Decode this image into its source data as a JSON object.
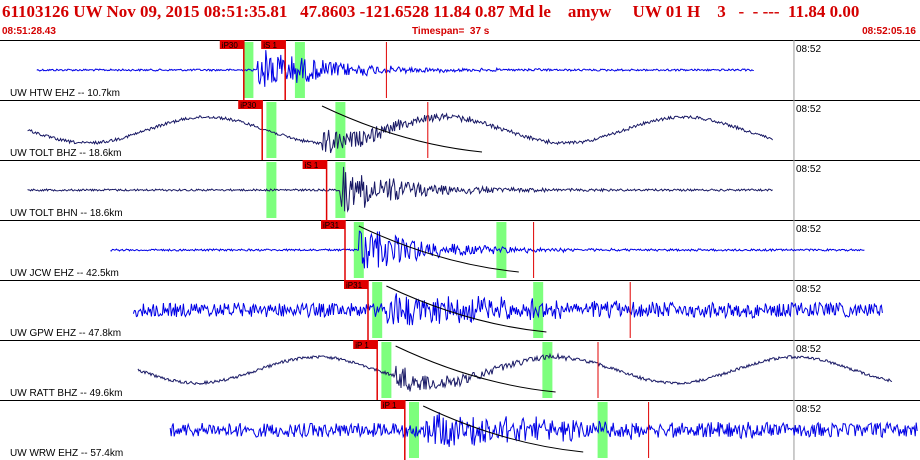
{
  "header": {
    "title": "61103126 UW Nov 09, 2015 08:51:35.81   47.8603 -121.6528 11.84 0.87 Md le    amyw     UW 01 H    3   -  - ---  11.84 0.00",
    "start_time": "08:51:28.43",
    "timespan": "Timespan=  37 s",
    "end_time": "08:52:05.16"
  },
  "colors": {
    "text": "#d40000",
    "trace_blue": "#0000e6",
    "trace_navy": "#1a1a66",
    "pick": "#e00000",
    "window": "#66ff66",
    "grid": "#000000"
  },
  "panels": [
    {
      "label": "UW HTW EHZ -- 10.7km",
      "time": "08:52",
      "color": "#0000e6",
      "kind": "quake",
      "trace": [
        0.04,
        0.82
      ],
      "onset": 0.28,
      "picks": [
        {
          "label": "iP30",
          "pos": 0.265
        },
        {
          "label": "iS 1",
          "pos": 0.31
        }
      ],
      "windows": [
        0.27,
        0.326
      ],
      "curve": false,
      "tick": 0.42
    },
    {
      "label": "UW TOLT BHZ -- 18.6km",
      "time": "08:52",
      "color": "#1a1a66",
      "kind": "wave",
      "trace": [
        0.03,
        0.84
      ],
      "onset": 0.35,
      "picks": [
        {
          "label": "iP30",
          "pos": 0.285
        }
      ],
      "windows": [
        0.295,
        0.37
      ],
      "curve": true,
      "tick": 0.465
    },
    {
      "label": "UW TOLT BHN -- 18.6km",
      "time": "08:52",
      "color": "#1a1a66",
      "kind": "quake",
      "trace": [
        0.03,
        0.84
      ],
      "onset": 0.37,
      "picks": [
        {
          "label": "iS 1",
          "pos": 0.355
        }
      ],
      "windows": [
        0.295,
        0.37
      ],
      "curve": false,
      "tick": null
    },
    {
      "label": "UW JCW EHZ -- 42.5km",
      "time": "08:52",
      "color": "#0000e6",
      "kind": "quake",
      "trace": [
        0.12,
        0.94
      ],
      "onset": 0.39,
      "picks": [
        {
          "label": "iP31",
          "pos": 0.375
        }
      ],
      "windows": [
        0.39,
        0.545
      ],
      "curve": true,
      "tick": 0.58
    },
    {
      "label": "UW GPW EHZ -- 47.8km",
      "time": "08:52",
      "color": "#0000e6",
      "kind": "noise",
      "trace": [
        0.145,
        0.96
      ],
      "onset": 0.42,
      "picks": [
        {
          "label": "iP31",
          "pos": 0.4
        }
      ],
      "windows": [
        0.41,
        0.585
      ],
      "curve": true,
      "tick": 0.685
    },
    {
      "label": "UW RATT BHZ -- 49.6km",
      "time": "08:52",
      "color": "#1a1a66",
      "kind": "wave",
      "trace": [
        0.15,
        0.97
      ],
      "onset": 0.43,
      "picks": [
        {
          "label": "iP 1",
          "pos": 0.41
        }
      ],
      "windows": [
        0.42,
        0.595
      ],
      "curve": true,
      "tick": 0.65
    },
    {
      "label": "UW WRW EHZ -- 57.4km",
      "time": "08:52",
      "color": "#0000e6",
      "kind": "noise",
      "trace": [
        0.185,
        1.0
      ],
      "onset": 0.46,
      "picks": [
        {
          "label": "iP 1",
          "pos": 0.44
        }
      ],
      "windows": [
        0.45,
        0.655
      ],
      "curve": true,
      "tick": 0.705
    }
  ]
}
